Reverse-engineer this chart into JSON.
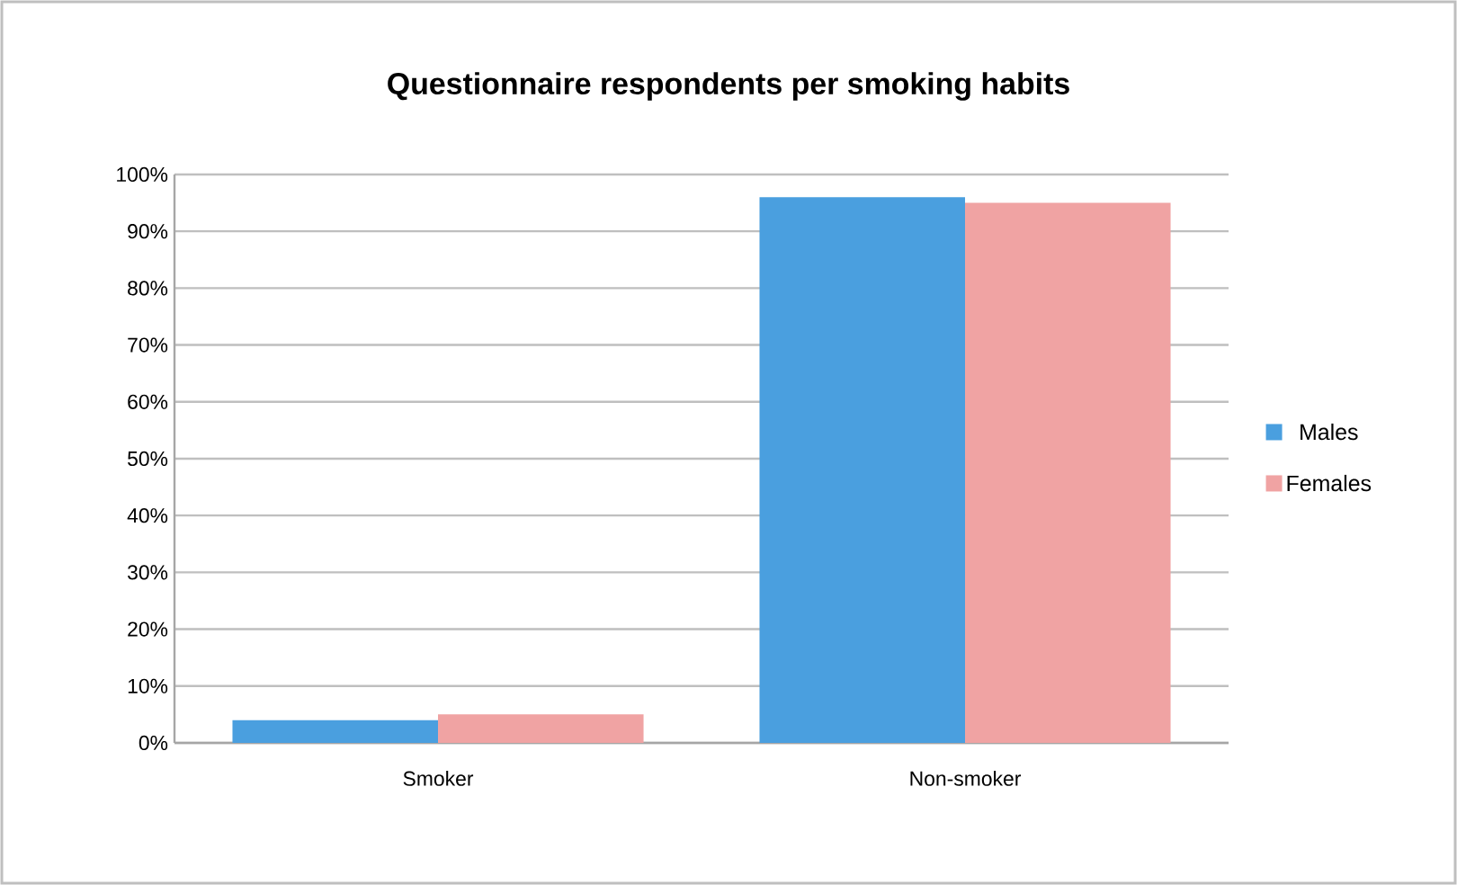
{
  "chart_data": {
    "type": "bar",
    "title": "Questionnaire respondents per smoking habits",
    "categories": [
      "Smoker",
      "Non-smoker"
    ],
    "series": [
      {
        "name": "Males",
        "color": "#4a9fdf",
        "values": [
          4,
          96
        ]
      },
      {
        "name": "Females",
        "color": "#f0a3a3",
        "values": [
          5,
          95
        ]
      }
    ],
    "ylim": [
      0,
      100
    ],
    "yticks": [
      {
        "value": 0,
        "label": "0%"
      },
      {
        "value": 10,
        "label": "10%"
      },
      {
        "value": 20,
        "label": "20%"
      },
      {
        "value": 30,
        "label": "30%"
      },
      {
        "value": 40,
        "label": "40%"
      },
      {
        "value": 50,
        "label": "50%"
      },
      {
        "value": 60,
        "label": "60%"
      },
      {
        "value": 70,
        "label": "70%"
      },
      {
        "value": 80,
        "label": "80%"
      },
      {
        "value": 90,
        "label": "90%"
      },
      {
        "value": 100,
        "label": "100%"
      }
    ],
    "grid": "y",
    "legend": "right"
  }
}
